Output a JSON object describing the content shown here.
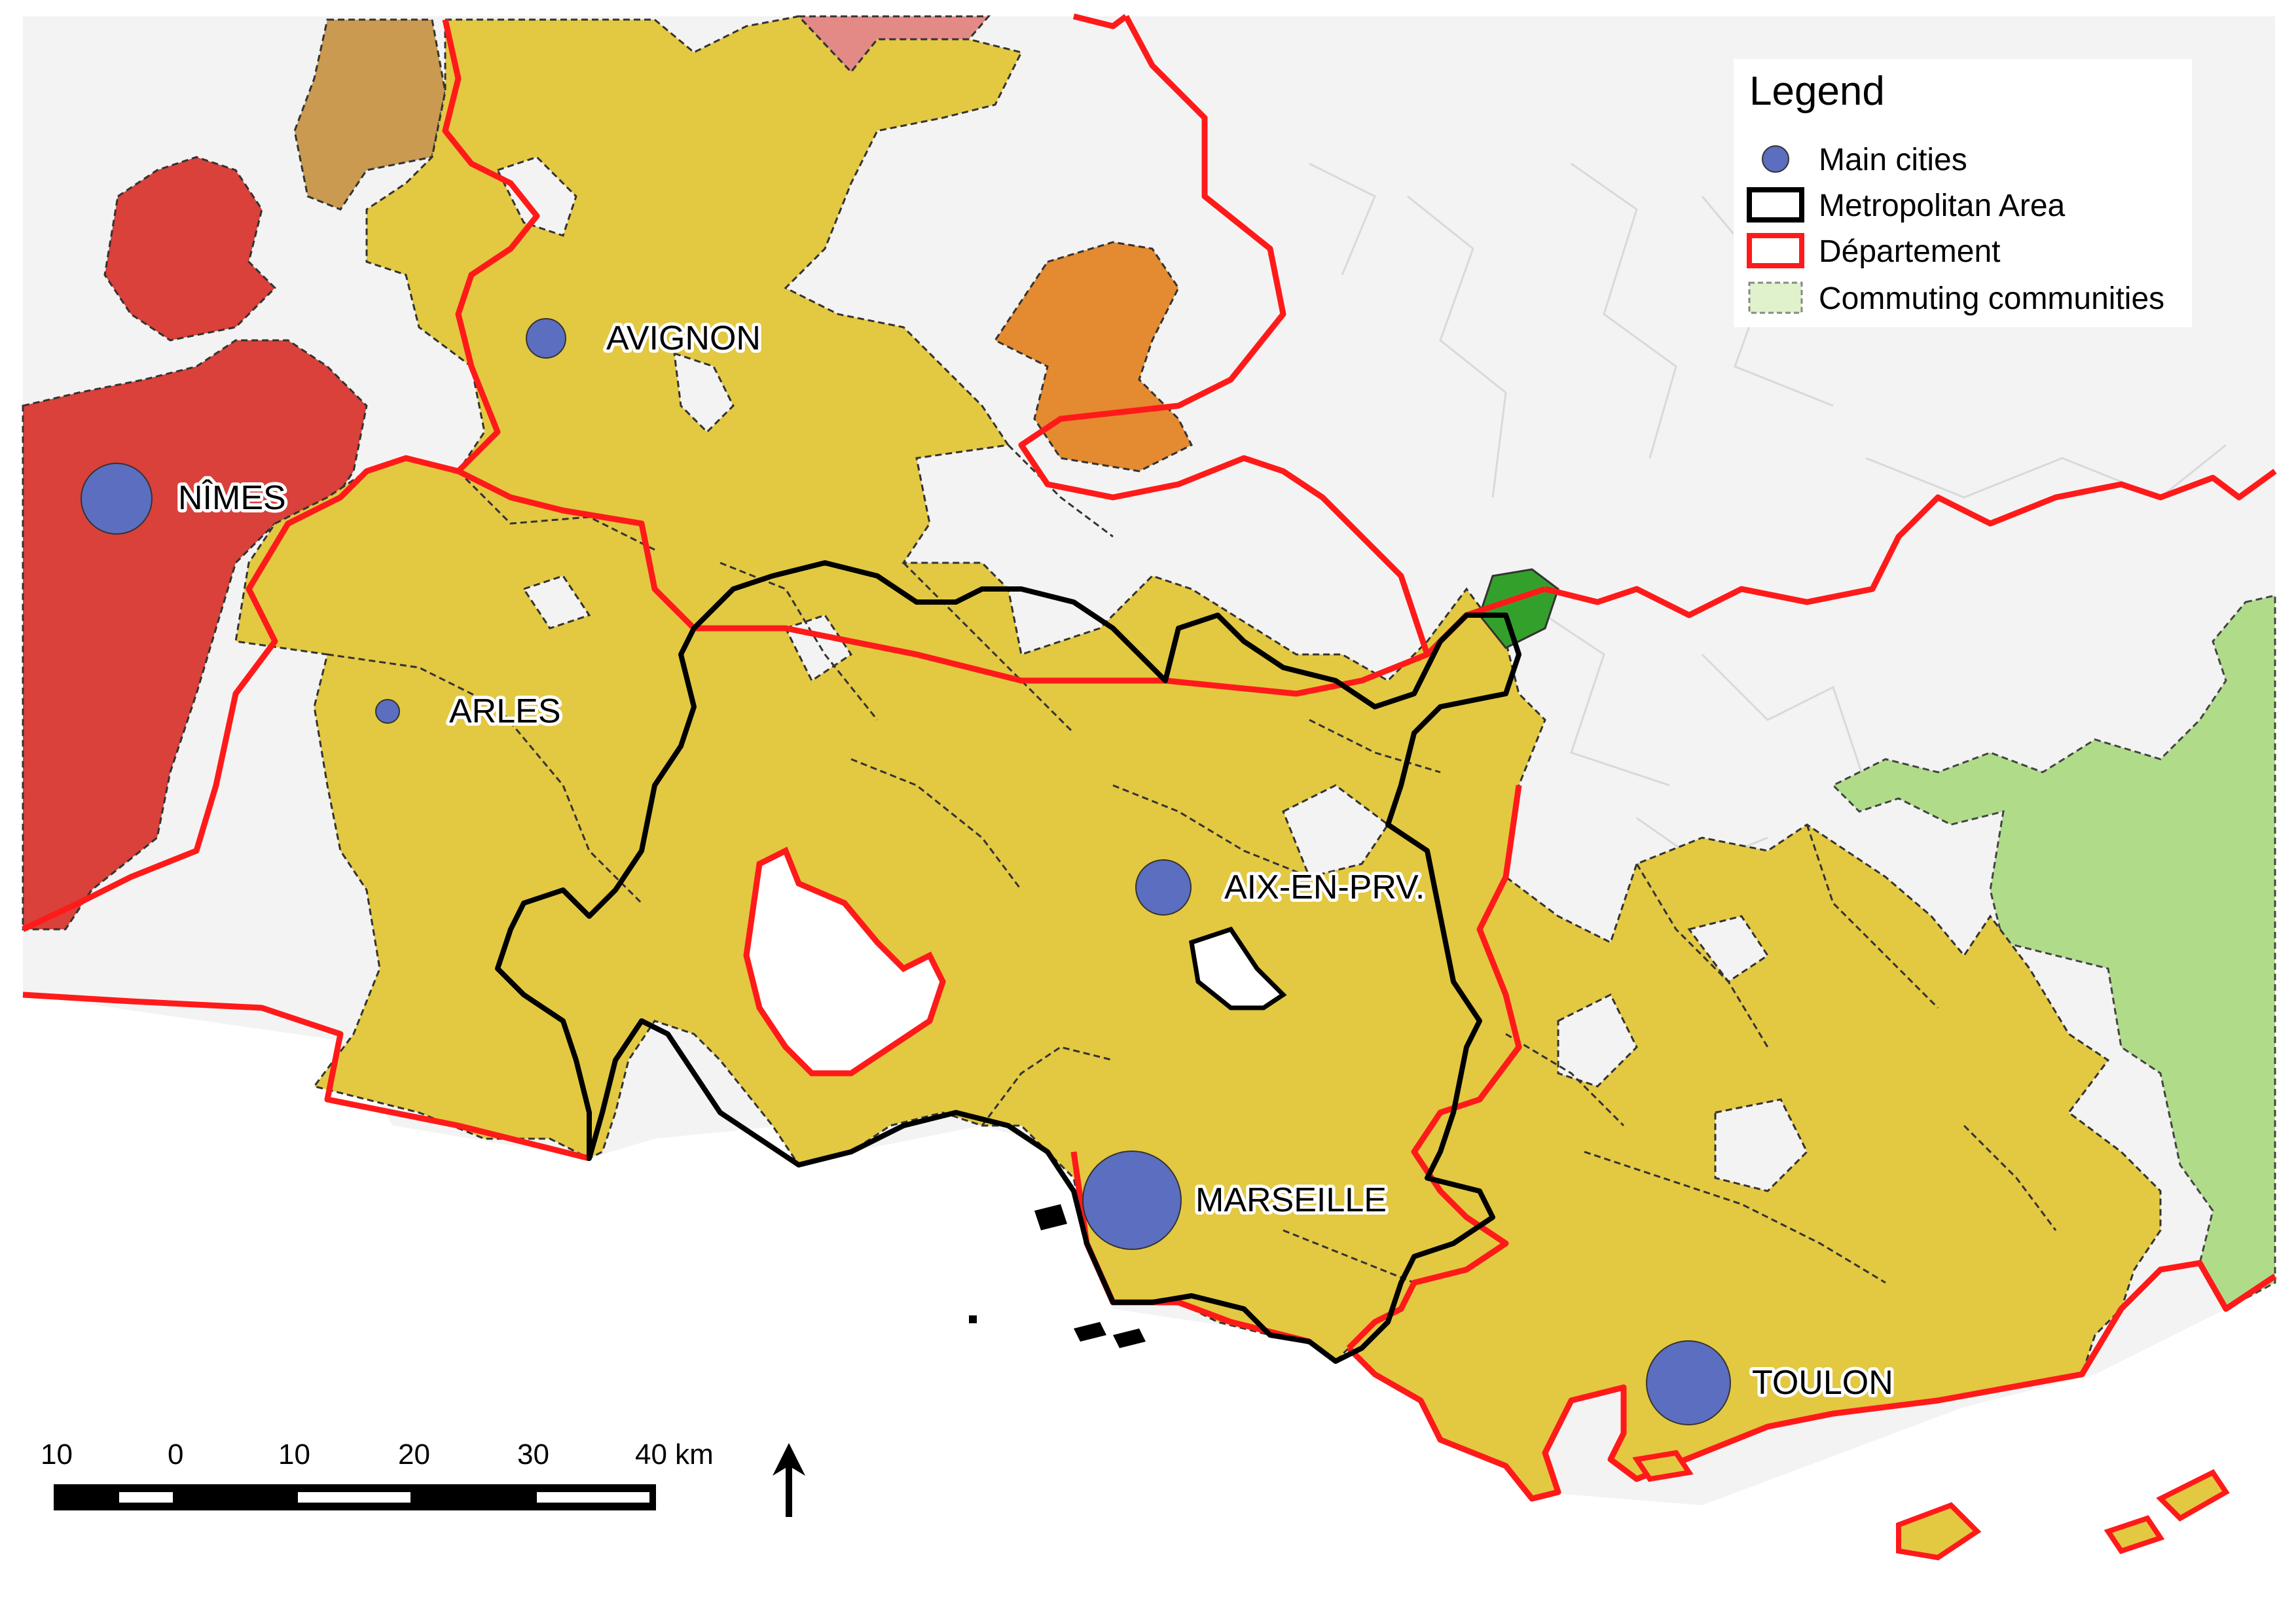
{
  "map": {
    "background_color": "#f3f3f3",
    "sea_color": "#ffffff",
    "colors": {
      "metropolitan_communes": "#e3c842",
      "nimes_area": "#d9413a",
      "orange_area": "#e48a30",
      "brown_area": "#c99a50",
      "pink_area": "#e38a86",
      "green_commune": "#34a02c",
      "commuting_communities": "#b0dc8a",
      "departement_border": "#ff1a1a",
      "metropolitan_border": "#000000",
      "city_marker": "#5c6ebf"
    }
  },
  "cities": [
    {
      "name": "AVIGNON",
      "size": "small"
    },
    {
      "name": "NÎMES",
      "size": "medium"
    },
    {
      "name": "ARLES",
      "size": "tiny"
    },
    {
      "name": "AIX-EN-PRV.",
      "size": "small"
    },
    {
      "name": "MARSEILLE",
      "size": "large"
    },
    {
      "name": "TOULON",
      "size": "medium"
    }
  ],
  "legend": {
    "title": "Legend",
    "items": [
      {
        "label": "Main cities",
        "symbol": "circle-icon"
      },
      {
        "label": "Metropolitan Area",
        "symbol": "black-outline-box-icon"
      },
      {
        "label": "Département",
        "symbol": "red-outline-box-icon"
      },
      {
        "label": "Commuting communities",
        "symbol": "dashed-green-box-icon"
      }
    ]
  },
  "scale_bar": {
    "ticks": [
      "10",
      "0",
      "10",
      "20",
      "30",
      "40 km"
    ]
  },
  "north_arrow": {
    "icon": "north-arrow-icon"
  }
}
